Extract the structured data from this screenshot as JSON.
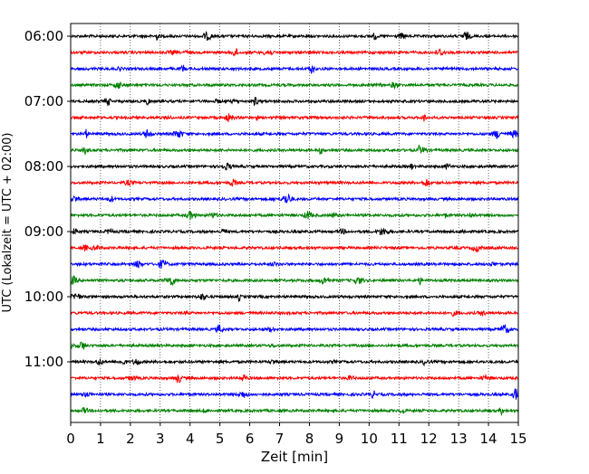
{
  "chart_data": {
    "type": "line",
    "subtype": "helicorder",
    "title": "",
    "xlabel": "Zeit  [min]",
    "ylabel": "UTC (Lokalzeit = UTC + 02:00)",
    "xlim": [
      0,
      15
    ],
    "x_ticks": [
      "0",
      "1",
      "2",
      "3",
      "4",
      "5",
      "6",
      "7",
      "8",
      "9",
      "10",
      "11",
      "12",
      "13",
      "14",
      "15"
    ],
    "y_tick_labels": [
      "06:00",
      "07:00",
      "08:00",
      "09:00",
      "10:00",
      "11:00"
    ],
    "y_tick_trace_index": [
      0,
      4,
      8,
      12,
      16,
      20
    ],
    "trace_interval_minutes": 15,
    "trace_start_times": [
      "06:00",
      "06:15",
      "06:30",
      "06:45",
      "07:00",
      "07:15",
      "07:30",
      "07:45",
      "08:00",
      "08:15",
      "08:30",
      "08:45",
      "09:00",
      "09:15",
      "09:30",
      "09:45",
      "10:00",
      "10:15",
      "10:30",
      "10:45",
      "11:00",
      "11:15",
      "11:30",
      "11:45"
    ],
    "trace_colors": [
      "#000000",
      "#ff0000",
      "#0000ff",
      "#008000"
    ],
    "color_cycle": "per trace: black, red, blue, green",
    "vertical_grid": "dotted, at each minute",
    "horizontal_grid": false,
    "signal": "continuous low-amplitude seismic noise, no labelled events"
  }
}
